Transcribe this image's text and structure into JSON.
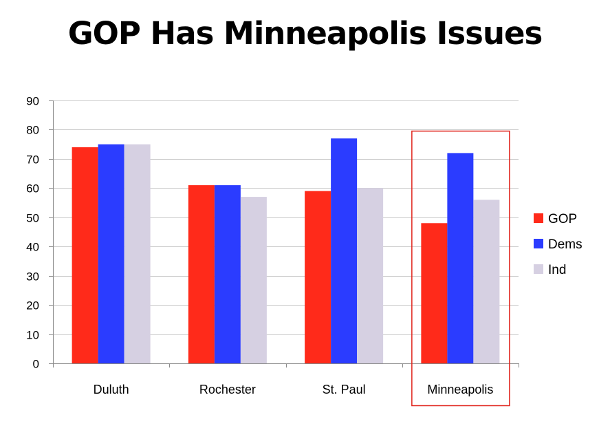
{
  "chart_data": {
    "type": "bar",
    "title": "GOP Has Minneapolis Issues",
    "categories": [
      "Duluth",
      "Rochester",
      "St. Paul",
      "Minneapolis"
    ],
    "series": [
      {
        "name": "GOP",
        "values": [
          74,
          61,
          59,
          48
        ],
        "color": "#ff2a1a"
      },
      {
        "name": "Dems",
        "values": [
          75,
          61,
          77,
          72
        ],
        "color": "#2b3cff"
      },
      {
        "name": "Ind",
        "values": [
          75,
          57,
          60,
          56
        ],
        "color": "#d6d0e2"
      }
    ],
    "ylim": [
      0,
      90
    ],
    "yticks": [
      0,
      10,
      20,
      30,
      40,
      50,
      60,
      70,
      80,
      90
    ],
    "grid": true,
    "legend_position": "right",
    "highlight": {
      "category": "Minneapolis",
      "color": "#e0231b"
    },
    "xlabel": "",
    "ylabel": ""
  }
}
